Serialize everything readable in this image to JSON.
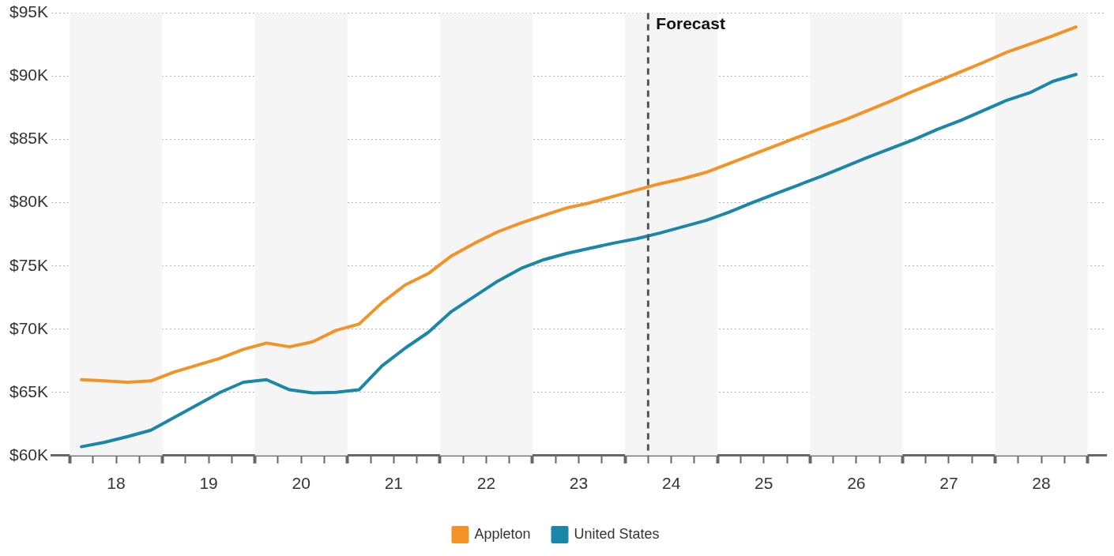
{
  "chart_data": {
    "type": "line",
    "x": [
      18.125,
      18.375,
      18.625,
      18.875,
      19.125,
      19.375,
      19.625,
      19.875,
      20.125,
      20.375,
      20.625,
      20.875,
      21.125,
      21.375,
      21.625,
      21.875,
      22.125,
      22.375,
      22.625,
      22.875,
      23.125,
      23.375,
      23.625,
      23.875,
      24.125,
      24.375,
      24.625,
      24.875,
      25.125,
      25.375,
      25.625,
      25.875,
      26.125,
      26.375,
      26.625,
      26.875,
      27.125,
      27.375,
      27.625,
      27.875,
      28.125,
      28.375,
      28.625,
      28.875
    ],
    "series": [
      {
        "name": "Appleton",
        "color": "#f39325",
        "values": [
          66.0,
          65.9,
          65.8,
          65.9,
          66.6,
          67.15,
          67.7,
          68.4,
          68.9,
          68.6,
          69.0,
          69.9,
          70.4,
          72.1,
          73.5,
          74.4,
          75.8,
          76.8,
          77.7,
          78.4,
          79.0,
          79.6,
          80.0,
          80.5,
          81.0,
          81.5,
          81.9,
          82.4,
          83.1,
          83.8,
          84.5,
          85.2,
          85.9,
          86.55,
          87.3,
          88.05,
          88.85,
          89.6,
          90.35,
          91.1,
          91.9,
          92.55,
          93.2,
          93.9
        ]
      },
      {
        "name": "United States",
        "color": "#1b87a8",
        "values": [
          60.7,
          61.05,
          61.5,
          62.0,
          63.0,
          64.0,
          65.0,
          65.8,
          66.0,
          65.2,
          64.95,
          65.0,
          65.2,
          67.1,
          68.5,
          69.75,
          71.4,
          72.6,
          73.8,
          74.8,
          75.5,
          76.0,
          76.4,
          76.8,
          77.15,
          77.6,
          78.1,
          78.6,
          79.25,
          80.0,
          80.7,
          81.4,
          82.1,
          82.85,
          83.6,
          84.3,
          85.0,
          85.8,
          86.5,
          87.3,
          88.1,
          88.7,
          89.6,
          90.15
        ]
      }
    ],
    "xlim": [
      17.8,
      29.2
    ],
    "xticks": [
      {
        "value": 18,
        "label": null
      },
      {
        "value": 18.25,
        "label": null
      },
      {
        "value": 18.5,
        "label": "18"
      },
      {
        "value": 18.75,
        "label": null
      },
      {
        "value": 19,
        "label": null
      },
      {
        "value": 19.25,
        "label": null
      },
      {
        "value": 19.5,
        "label": "19"
      },
      {
        "value": 19.75,
        "label": null
      },
      {
        "value": 20,
        "label": null
      },
      {
        "value": 20.25,
        "label": null
      },
      {
        "value": 20.5,
        "label": "20"
      },
      {
        "value": 20.75,
        "label": null
      },
      {
        "value": 21,
        "label": null
      },
      {
        "value": 21.25,
        "label": null
      },
      {
        "value": 21.5,
        "label": "21"
      },
      {
        "value": 21.75,
        "label": null
      },
      {
        "value": 22,
        "label": null
      },
      {
        "value": 22.25,
        "label": null
      },
      {
        "value": 22.5,
        "label": "22"
      },
      {
        "value": 22.75,
        "label": null
      },
      {
        "value": 23,
        "label": null
      },
      {
        "value": 23.25,
        "label": null
      },
      {
        "value": 23.5,
        "label": "23"
      },
      {
        "value": 23.75,
        "label": null
      },
      {
        "value": 24,
        "label": null
      },
      {
        "value": 24.25,
        "label": null
      },
      {
        "value": 24.5,
        "label": "24"
      },
      {
        "value": 24.75,
        "label": null
      },
      {
        "value": 25,
        "label": null
      },
      {
        "value": 25.25,
        "label": null
      },
      {
        "value": 25.5,
        "label": "25"
      },
      {
        "value": 25.75,
        "label": null
      },
      {
        "value": 26,
        "label": null
      },
      {
        "value": 26.25,
        "label": null
      },
      {
        "value": 26.5,
        "label": "26"
      },
      {
        "value": 26.75,
        "label": null
      },
      {
        "value": 27,
        "label": null
      },
      {
        "value": 27.25,
        "label": null
      },
      {
        "value": 27.5,
        "label": "27"
      },
      {
        "value": 27.75,
        "label": null
      },
      {
        "value": 28,
        "label": null
      },
      {
        "value": 28.25,
        "label": null
      },
      {
        "value": 28.5,
        "label": "28"
      },
      {
        "value": 28.75,
        "label": null
      },
      {
        "value": 29,
        "label": null
      }
    ],
    "ylim": [
      60,
      95
    ],
    "yticks": [
      {
        "value": 60,
        "label": "$60K"
      },
      {
        "value": 65,
        "label": "$65K"
      },
      {
        "value": 70,
        "label": "$70K"
      },
      {
        "value": 75,
        "label": "$75K"
      },
      {
        "value": 80,
        "label": "$80K"
      },
      {
        "value": 85,
        "label": "$85K"
      },
      {
        "value": 90,
        "label": "$90K"
      },
      {
        "value": 95,
        "label": "$95K"
      }
    ],
    "grid": "y",
    "legend": "bottom",
    "line_style": "solid",
    "bands": [
      {
        "axis": "x",
        "from": 18,
        "to": 19,
        "color": "#f5f5f5"
      },
      {
        "axis": "x",
        "from": 20,
        "to": 21,
        "color": "#f5f5f5"
      },
      {
        "axis": "x",
        "from": 22,
        "to": 23,
        "color": "#f5f5f5"
      },
      {
        "axis": "x",
        "from": 24,
        "to": 25,
        "color": "#f5f5f5"
      },
      {
        "axis": "x",
        "from": 26,
        "to": 27,
        "color": "#f5f5f5"
      },
      {
        "axis": "x",
        "from": 28,
        "to": 29,
        "color": "#f5f5f5"
      }
    ],
    "ref_lines": [
      {
        "axis": "x",
        "value": 24.25,
        "label": "Forecast",
        "color": "#555555",
        "line_style": "dashed"
      }
    ]
  }
}
